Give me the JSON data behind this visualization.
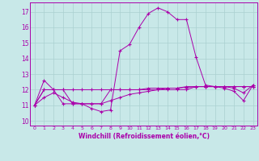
{
  "background_color": "#c8e8e8",
  "grid_color": "#aad0d0",
  "line_color": "#aa00aa",
  "xlabel": "Windchill (Refroidissement éolien,°C)",
  "xlim": [
    -0.5,
    23.5
  ],
  "ylim": [
    9.7,
    17.6
  ],
  "yticks": [
    10,
    11,
    12,
    13,
    14,
    15,
    16,
    17
  ],
  "xticks": [
    0,
    1,
    2,
    3,
    4,
    5,
    6,
    7,
    8,
    9,
    10,
    11,
    12,
    13,
    14,
    15,
    16,
    17,
    18,
    19,
    20,
    21,
    22,
    23
  ],
  "series": [
    [
      11.0,
      12.6,
      12.0,
      11.1,
      11.1,
      11.1,
      10.8,
      10.6,
      10.7,
      14.5,
      14.9,
      16.0,
      16.9,
      17.25,
      17.0,
      16.5,
      16.5,
      14.1,
      12.3,
      12.2,
      12.1,
      11.9,
      11.3,
      12.3
    ],
    [
      11.0,
      12.0,
      12.0,
      12.0,
      11.1,
      11.1,
      11.1,
      11.1,
      12.0,
      12.0,
      12.0,
      12.0,
      12.1,
      12.1,
      12.1,
      12.1,
      12.15,
      12.2,
      12.2,
      12.2,
      12.2,
      12.2,
      12.2,
      12.2
    ],
    [
      11.0,
      11.5,
      11.8,
      11.5,
      11.2,
      11.1,
      11.1,
      11.1,
      11.3,
      11.5,
      11.7,
      11.8,
      11.9,
      12.0,
      12.1,
      12.1,
      12.2,
      12.2,
      12.2,
      12.2,
      12.2,
      12.1,
      11.8,
      12.3
    ],
    [
      11.0,
      12.0,
      12.0,
      12.0,
      12.0,
      12.0,
      12.0,
      12.0,
      12.0,
      12.0,
      12.0,
      12.0,
      12.0,
      12.0,
      12.0,
      12.0,
      12.0,
      12.2,
      12.2,
      12.2,
      12.2,
      12.2,
      12.2,
      12.2
    ]
  ]
}
